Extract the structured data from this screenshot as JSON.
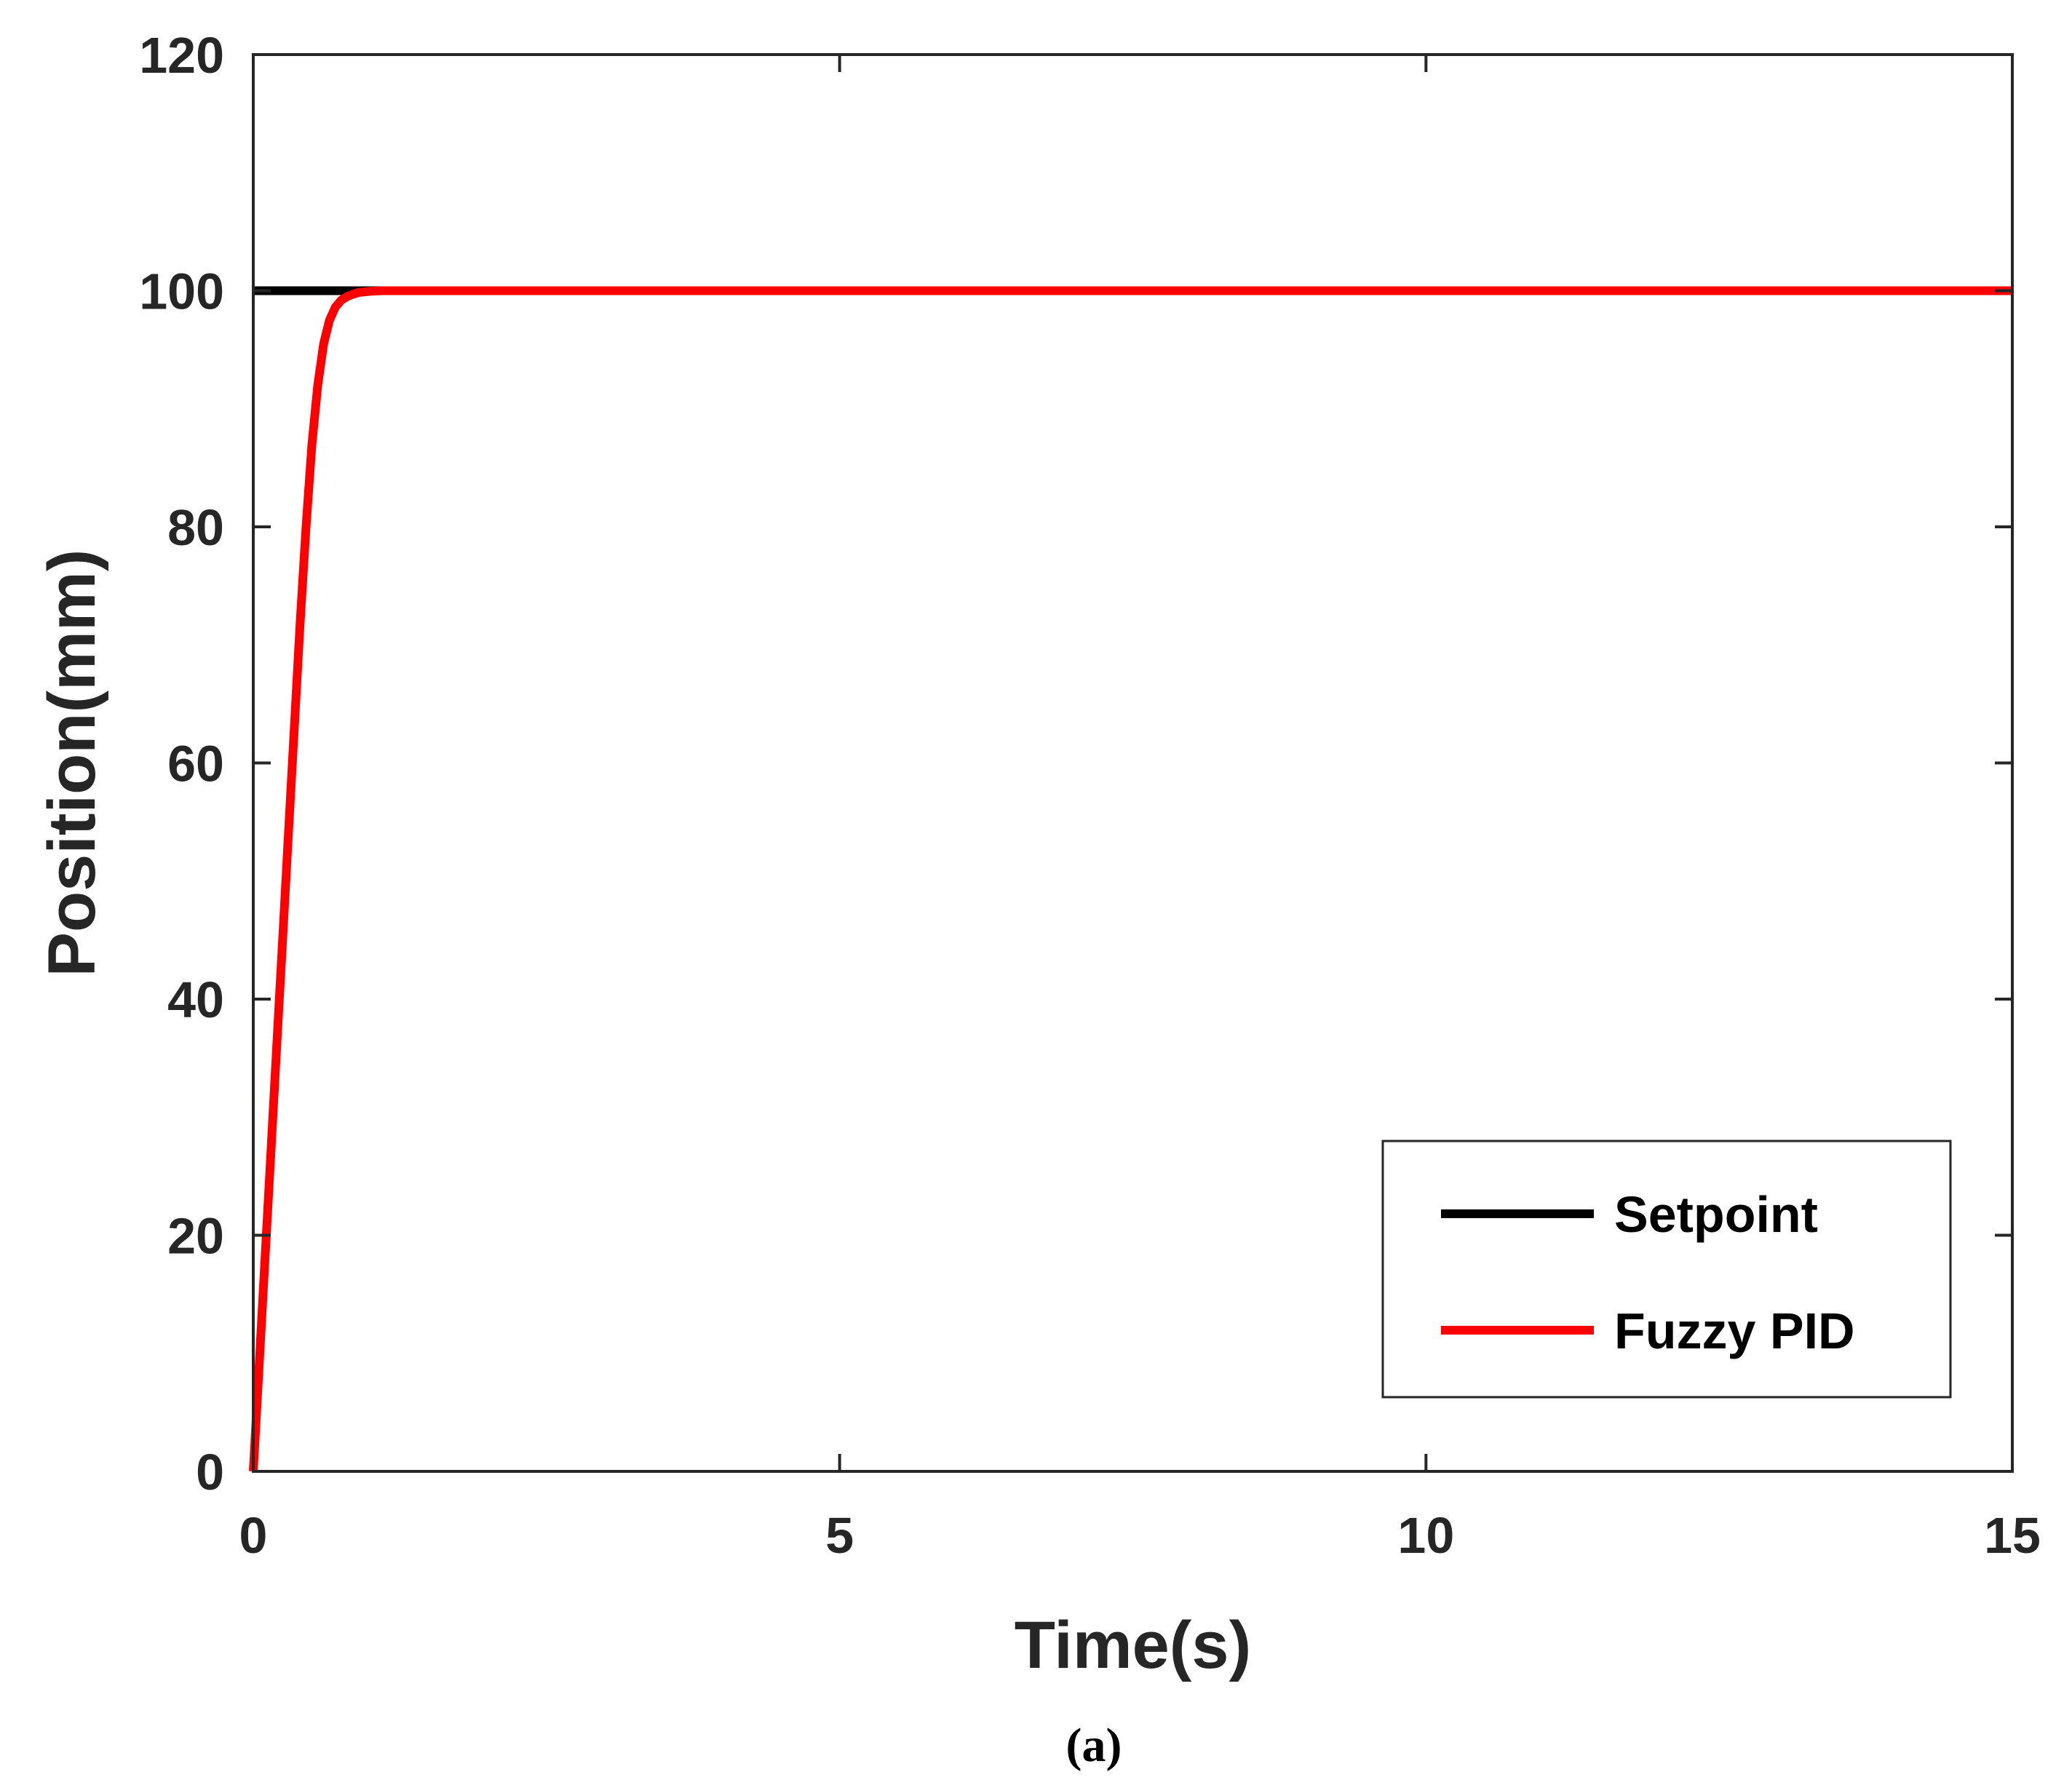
{
  "chart_data": {
    "type": "line",
    "xlabel": "Time(s)",
    "ylabel": "Position(mm)",
    "xlim": [
      0,
      15
    ],
    "ylim": [
      0,
      120
    ],
    "xticks": [
      0,
      5,
      10,
      15
    ],
    "yticks": [
      0,
      20,
      40,
      60,
      80,
      100,
      120
    ],
    "grid": false,
    "legend_position": "bottom-right",
    "caption": "(a)",
    "series": [
      {
        "name": "Setpoint",
        "color": "#000000",
        "x": [
          0,
          15
        ],
        "y": [
          100,
          100
        ]
      },
      {
        "name": "Fuzzy PID",
        "color": "#ff0000",
        "x": [
          0,
          0.05,
          0.1,
          0.15,
          0.2,
          0.25,
          0.3,
          0.35,
          0.4,
          0.45,
          0.5,
          0.55,
          0.6,
          0.65,
          0.7,
          0.75,
          0.8,
          0.85,
          0.9,
          1.0,
          1.1,
          1.2,
          1.4,
          1.6,
          2.0,
          15
        ],
        "y": [
          0,
          9,
          18,
          27,
          36,
          45,
          54,
          63,
          72,
          80,
          87,
          92,
          95.5,
          97.5,
          98.6,
          99.2,
          99.5,
          99.7,
          99.85,
          99.95,
          100,
          100,
          100,
          100,
          100,
          100
        ]
      }
    ]
  }
}
